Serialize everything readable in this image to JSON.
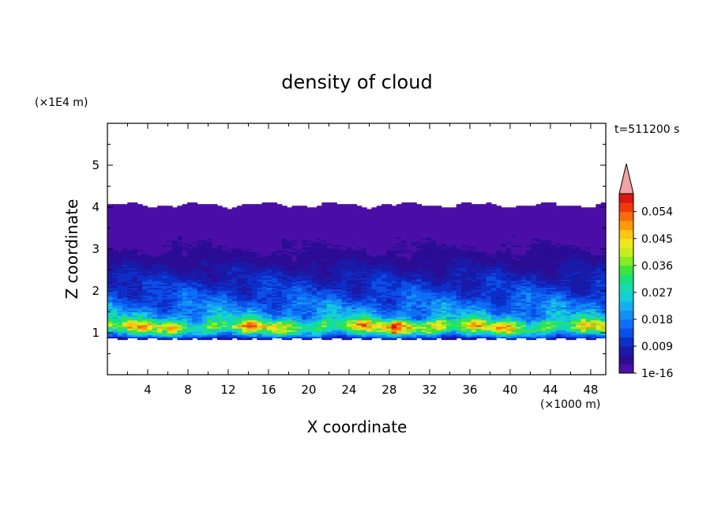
{
  "chart_data": {
    "type": "heatmap",
    "title": "density of cloud",
    "xlabel": "X coordinate",
    "ylabel": "Z coordinate",
    "x_unit": "(×1000 m)",
    "y_unit": "(×1E4 m)",
    "time_label": "t=511200 s",
    "xlim": [
      0,
      49.5
    ],
    "ylim": [
      0,
      6
    ],
    "x_ticks": [
      4,
      8,
      12,
      16,
      20,
      24,
      28,
      32,
      36,
      40,
      44,
      48
    ],
    "y_ticks": [
      1,
      2,
      3,
      4,
      5
    ],
    "cloud_base_z": 0.85,
    "cloud_top_z": 4.05,
    "max_density_z": 1.15,
    "colorbar": {
      "levels": [
        1e-16,
        0.003,
        0.006,
        0.009,
        0.012,
        0.015,
        0.018,
        0.021,
        0.024,
        0.027,
        0.03,
        0.033,
        0.036,
        0.039,
        0.042,
        0.045,
        0.048,
        0.051,
        0.054,
        0.057
      ],
      "tick_labels": [
        "1e-16",
        "0.009",
        "0.018",
        "0.027",
        "0.036",
        "0.045",
        "0.054"
      ],
      "tick_values": [
        1e-16,
        0.009,
        0.018,
        0.027,
        0.036,
        0.045,
        0.054
      ],
      "colors": [
        "#4a0fa6",
        "#2a0d94",
        "#1a1aa8",
        "#0e2ec8",
        "#0b4fe6",
        "#0d6ff5",
        "#1390f5",
        "#14b0ee",
        "#14cfd6",
        "#14dcae",
        "#18e07a",
        "#3ee33c",
        "#86ea24",
        "#c6ee1e",
        "#f0e61c",
        "#fcc414",
        "#fc9a0c",
        "#f86a0a",
        "#ee3a0a",
        "#dc1610"
      ],
      "extend_color": "#f2a3a3"
    },
    "vertical_profile": {
      "z": [
        0.85,
        0.95,
        1.05,
        1.15,
        1.25,
        1.35,
        1.5,
        1.7,
        1.9,
        2.2,
        2.6,
        3.0,
        3.5,
        4.05
      ],
      "density": [
        0.006,
        0.021,
        0.032,
        0.04,
        0.034,
        0.024,
        0.019,
        0.016,
        0.013,
        0.01,
        0.006,
        0.003,
        0.0015,
        0.0005
      ]
    }
  }
}
